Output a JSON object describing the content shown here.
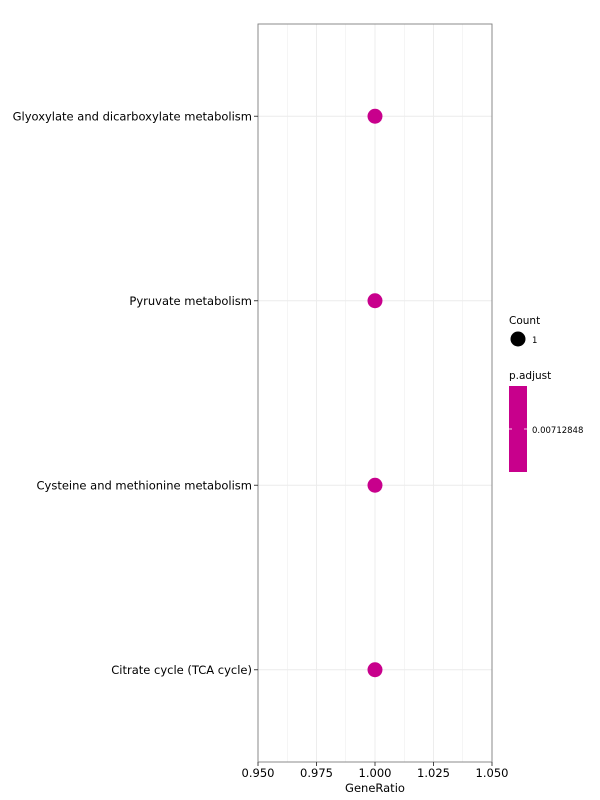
{
  "chart_data": {
    "type": "scatter",
    "xlabel": "GeneRatio",
    "xlim": [
      0.95,
      1.05
    ],
    "x_ticks": [
      "0.950",
      "0.975",
      "1.000",
      "1.025",
      "1.050"
    ],
    "x_tick_values": [
      0.95,
      0.975,
      1.0,
      1.025,
      1.05
    ],
    "categories": [
      "Glyoxylate and dicarboxylate metabolism",
      "Pyruvate metabolism",
      "Cysteine and methionine metabolism",
      "Citrate cycle (TCA cycle)"
    ],
    "points": [
      {
        "category": "Glyoxylate and dicarboxylate metabolism",
        "x": 1.0,
        "count": 1,
        "p_adjust": 0.00712848
      },
      {
        "category": "Pyruvate metabolism",
        "x": 1.0,
        "count": 1,
        "p_adjust": 0.00712848
      },
      {
        "category": "Cysteine and methionine metabolism",
        "x": 1.0,
        "count": 1,
        "p_adjust": 0.00712848
      },
      {
        "category": "Citrate cycle (TCA cycle)",
        "x": 1.0,
        "count": 1,
        "p_adjust": 0.00712848
      }
    ],
    "grid": true,
    "legend": {
      "position": "right",
      "size_title": "Count",
      "size_label": "1",
      "color_title": "p.adjust",
      "color_label": "0.00712848"
    },
    "point_color": "#c8008c",
    "grid_color": "#ebebeb",
    "border_color": "#7f7f7f"
  }
}
